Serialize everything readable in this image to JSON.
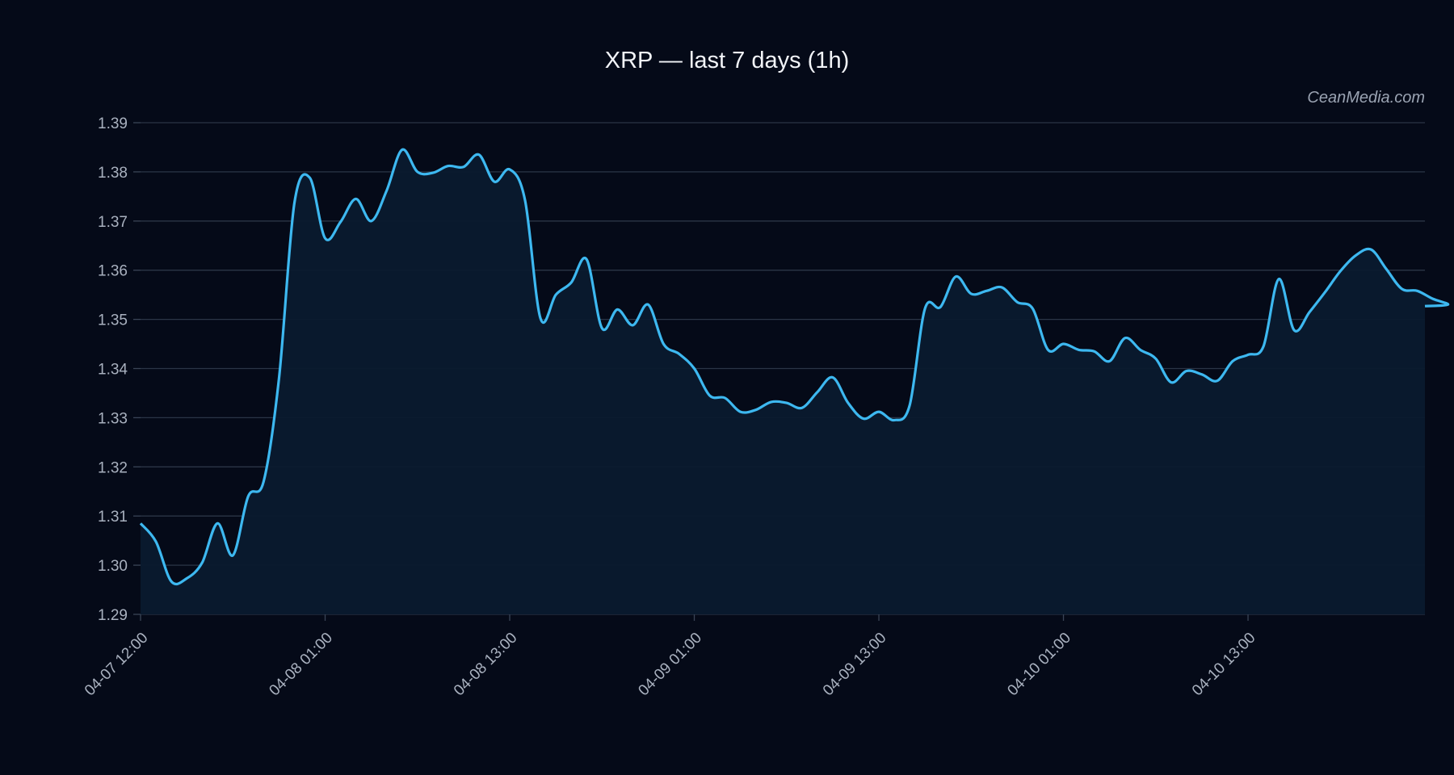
{
  "chart_data": {
    "type": "line",
    "title": "XRP — last 7 days (1h)",
    "watermark": "CeanMedia.com",
    "xlabel": "",
    "ylabel": "",
    "ylim": [
      1.29,
      1.39
    ],
    "yticks": [
      "1.29",
      "1.30",
      "1.31",
      "1.32",
      "1.33",
      "1.34",
      "1.35",
      "1.36",
      "1.37",
      "1.38",
      "1.39"
    ],
    "xtick_labels": [
      "04-07 12:00",
      "04-08 01:00",
      "04-08 13:00",
      "04-09 01:00",
      "04-09 13:00",
      "04-10 01:00",
      "04-10 13:00"
    ],
    "xtick_index": [
      0,
      12,
      24,
      36,
      48,
      60,
      72
    ],
    "x_range_hours": [
      0,
      83.5
    ],
    "grid": true,
    "line_color": "#3db8f0",
    "fill_color": "#0a1a2e",
    "background": "#050a18",
    "series": [
      {
        "values": [
          1.3085,
          1.3048,
          1.2967,
          1.2973,
          1.3005,
          1.3085,
          1.302,
          1.314,
          1.317,
          1.338,
          1.3736,
          1.3788,
          1.3665,
          1.3698,
          1.3745,
          1.37,
          1.3762,
          1.3845,
          1.38,
          1.3798,
          1.3812,
          1.381,
          1.3835,
          1.378,
          1.3805,
          1.3742,
          1.3502,
          1.355,
          1.3575,
          1.3622,
          1.3482,
          1.352,
          1.3488,
          1.353,
          1.345,
          1.343,
          1.34,
          1.3345,
          1.334,
          1.3312,
          1.3316,
          1.3332,
          1.333,
          1.332,
          1.3352,
          1.3382,
          1.333,
          1.3298,
          1.3312,
          1.3295,
          1.3325,
          1.3522,
          1.3525,
          1.3587,
          1.3552,
          1.3558,
          1.3565,
          1.3535,
          1.3522,
          1.3438,
          1.345,
          1.3438,
          1.3435,
          1.3415,
          1.3462,
          1.3438,
          1.342,
          1.3372,
          1.3395,
          1.3388,
          1.3375,
          1.3415,
          1.3428,
          1.3445,
          1.3582,
          1.3478,
          1.3515,
          1.3555,
          1.3598,
          1.363,
          1.3642,
          1.3602,
          1.3562,
          1.3558,
          1.3542,
          1.353
        ]
      }
    ]
  }
}
